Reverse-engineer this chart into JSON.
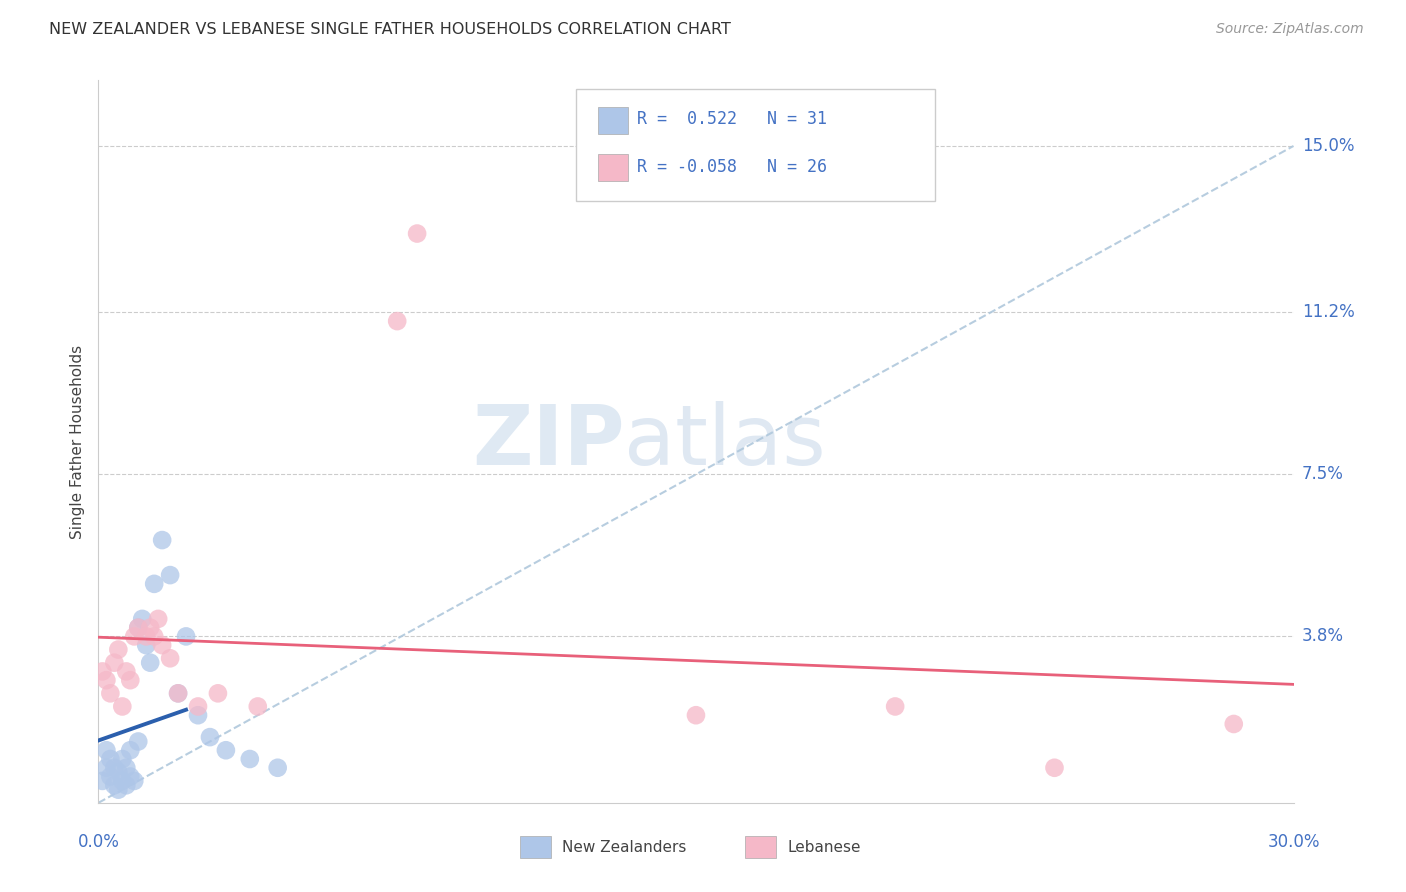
{
  "title": "NEW ZEALANDER VS LEBANESE SINGLE FATHER HOUSEHOLDS CORRELATION CHART",
  "source": "Source: ZipAtlas.com",
  "ylabel": "Single Father Households",
  "ytick_labels": [
    "15.0%",
    "11.2%",
    "7.5%",
    "3.8%"
  ],
  "ytick_values": [
    0.15,
    0.112,
    0.075,
    0.038
  ],
  "xlim": [
    0.0,
    0.3
  ],
  "ylim": [
    0.0,
    0.165
  ],
  "nz_color": "#aec6e8",
  "leb_color": "#f5b8c8",
  "nz_line_color": "#2b5fad",
  "leb_line_color": "#e8607a",
  "diag_color": "#b0c8dc",
  "watermark_zip": "ZIP",
  "watermark_atlas": "atlas",
  "nz_points": [
    [
      0.001,
      0.005
    ],
    [
      0.002,
      0.008
    ],
    [
      0.002,
      0.012
    ],
    [
      0.003,
      0.006
    ],
    [
      0.003,
      0.01
    ],
    [
      0.004,
      0.004
    ],
    [
      0.004,
      0.008
    ],
    [
      0.005,
      0.003
    ],
    [
      0.005,
      0.007
    ],
    [
      0.006,
      0.005
    ],
    [
      0.006,
      0.01
    ],
    [
      0.007,
      0.004
    ],
    [
      0.007,
      0.008
    ],
    [
      0.008,
      0.006
    ],
    [
      0.008,
      0.012
    ],
    [
      0.009,
      0.005
    ],
    [
      0.01,
      0.014
    ],
    [
      0.01,
      0.04
    ],
    [
      0.011,
      0.042
    ],
    [
      0.012,
      0.036
    ],
    [
      0.013,
      0.032
    ],
    [
      0.014,
      0.05
    ],
    [
      0.016,
      0.06
    ],
    [
      0.018,
      0.052
    ],
    [
      0.02,
      0.025
    ],
    [
      0.022,
      0.038
    ],
    [
      0.025,
      0.02
    ],
    [
      0.028,
      0.015
    ],
    [
      0.032,
      0.012
    ],
    [
      0.038,
      0.01
    ],
    [
      0.045,
      0.008
    ]
  ],
  "leb_points": [
    [
      0.001,
      0.03
    ],
    [
      0.002,
      0.028
    ],
    [
      0.003,
      0.025
    ],
    [
      0.004,
      0.032
    ],
    [
      0.005,
      0.035
    ],
    [
      0.006,
      0.022
    ],
    [
      0.007,
      0.03
    ],
    [
      0.008,
      0.028
    ],
    [
      0.009,
      0.038
    ],
    [
      0.01,
      0.04
    ],
    [
      0.012,
      0.038
    ],
    [
      0.013,
      0.04
    ],
    [
      0.014,
      0.038
    ],
    [
      0.015,
      0.042
    ],
    [
      0.016,
      0.036
    ],
    [
      0.018,
      0.033
    ],
    [
      0.02,
      0.025
    ],
    [
      0.025,
      0.022
    ],
    [
      0.03,
      0.025
    ],
    [
      0.04,
      0.022
    ],
    [
      0.075,
      0.11
    ],
    [
      0.08,
      0.13
    ],
    [
      0.15,
      0.02
    ],
    [
      0.2,
      0.022
    ],
    [
      0.24,
      0.008
    ],
    [
      0.285,
      0.018
    ]
  ]
}
